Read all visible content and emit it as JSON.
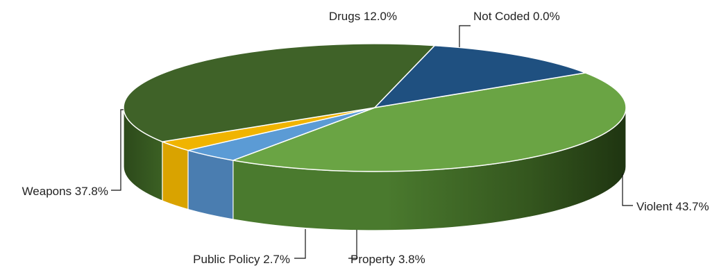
{
  "chart_data": {
    "type": "pie",
    "style": "3d",
    "title": "",
    "slices": [
      {
        "label": "Not Coded",
        "value": 0.0,
        "display": "Not Coded 0.0%",
        "color": "#1f4e79"
      },
      {
        "label": "Violent",
        "value": 43.7,
        "display": "Violent 43.7%",
        "color": "#6aa444"
      },
      {
        "label": "Property",
        "value": 3.8,
        "display": "Property 3.8%",
        "color": "#5b9bd5"
      },
      {
        "label": "Public Policy",
        "value": 2.7,
        "display": "Public Policy 2.7%",
        "color": "#f0b400"
      },
      {
        "label": "Weapons",
        "value": 37.8,
        "display": "Weapons 37.8%",
        "color": "#3f6228"
      },
      {
        "label": "Drugs",
        "value": 12.0,
        "display": "Drugs 12.0%",
        "color": "#1f5080"
      }
    ]
  }
}
